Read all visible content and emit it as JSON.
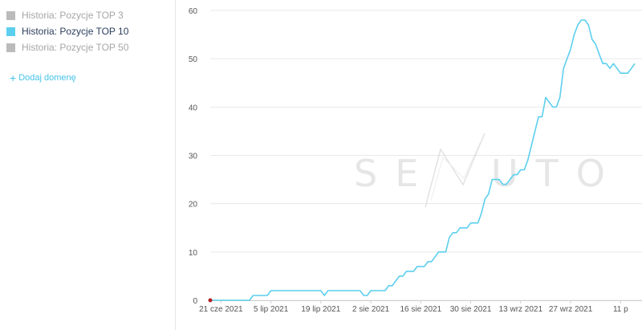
{
  "sidebar": {
    "legend": [
      {
        "label": "Historia: Pozycje TOP 3",
        "color": "#bbbbbb",
        "text_color": "#a6a6a6",
        "active": false
      },
      {
        "label": "Historia: Pozycje TOP 10",
        "color": "#5ccfee",
        "text_color": "#2c3e5c",
        "active": true
      },
      {
        "label": "Historia: Pozycje TOP 50",
        "color": "#bbbbbb",
        "text_color": "#a6a6a6",
        "active": false
      }
    ],
    "add_domain_label": "Dodaj domenę",
    "add_domain_icon": "plus-icon"
  },
  "watermark": {
    "left": "SE",
    "right": "UTO"
  },
  "chart_data": {
    "type": "line",
    "title": "",
    "xlabel": "",
    "ylabel": "",
    "ylim": [
      0,
      60
    ],
    "yticks": [
      0,
      10,
      20,
      30,
      40,
      50,
      60
    ],
    "xlim": [
      "2021-06-18",
      "2021-10-17"
    ],
    "xticks": [
      {
        "date": "2021-06-21",
        "label": "21 cze 2021"
      },
      {
        "date": "2021-07-05",
        "label": "5 lip 2021"
      },
      {
        "date": "2021-07-19",
        "label": "19 lip 2021"
      },
      {
        "date": "2021-08-02",
        "label": "2 sie 2021"
      },
      {
        "date": "2021-08-16",
        "label": "16 sie 2021"
      },
      {
        "date": "2021-08-30",
        "label": "30 sie 2021"
      },
      {
        "date": "2021-09-13",
        "label": "13 wrz 2021"
      },
      {
        "date": "2021-09-27",
        "label": "27 wrz 2021"
      },
      {
        "date": "2021-10-11",
        "label": "11 p"
      }
    ],
    "grid": true,
    "series": [
      {
        "name": "Historia: Pozycje TOP 10",
        "color": "#5ccfee",
        "points": [
          [
            "2021-06-18",
            0
          ],
          [
            "2021-06-29",
            0
          ],
          [
            "2021-06-30",
            1
          ],
          [
            "2021-07-04",
            1
          ],
          [
            "2021-07-05",
            2
          ],
          [
            "2021-07-19",
            2
          ],
          [
            "2021-07-20",
            1
          ],
          [
            "2021-07-21",
            2
          ],
          [
            "2021-07-30",
            2
          ],
          [
            "2021-07-31",
            1
          ],
          [
            "2021-08-01",
            1
          ],
          [
            "2021-08-02",
            2
          ],
          [
            "2021-08-06",
            2
          ],
          [
            "2021-08-07",
            3
          ],
          [
            "2021-08-08",
            3
          ],
          [
            "2021-08-09",
            4
          ],
          [
            "2021-08-10",
            5
          ],
          [
            "2021-08-11",
            5
          ],
          [
            "2021-08-12",
            6
          ],
          [
            "2021-08-14",
            6
          ],
          [
            "2021-08-15",
            7
          ],
          [
            "2021-08-17",
            7
          ],
          [
            "2021-08-18",
            8
          ],
          [
            "2021-08-19",
            8
          ],
          [
            "2021-08-20",
            9
          ],
          [
            "2021-08-21",
            10
          ],
          [
            "2021-08-23",
            10
          ],
          [
            "2021-08-24",
            13
          ],
          [
            "2021-08-25",
            14
          ],
          [
            "2021-08-26",
            14
          ],
          [
            "2021-08-27",
            15
          ],
          [
            "2021-08-29",
            15
          ],
          [
            "2021-08-30",
            16
          ],
          [
            "2021-09-01",
            16
          ],
          [
            "2021-09-02",
            18
          ],
          [
            "2021-09-03",
            21
          ],
          [
            "2021-09-04",
            22
          ],
          [
            "2021-09-05",
            25
          ],
          [
            "2021-09-07",
            25
          ],
          [
            "2021-09-08",
            24
          ],
          [
            "2021-09-09",
            24
          ],
          [
            "2021-09-10",
            25
          ],
          [
            "2021-09-11",
            26
          ],
          [
            "2021-09-12",
            26
          ],
          [
            "2021-09-13",
            27
          ],
          [
            "2021-09-14",
            27
          ],
          [
            "2021-09-15",
            29
          ],
          [
            "2021-09-16",
            32
          ],
          [
            "2021-09-17",
            35
          ],
          [
            "2021-09-18",
            38
          ],
          [
            "2021-09-19",
            38
          ],
          [
            "2021-09-20",
            42
          ],
          [
            "2021-09-21",
            41
          ],
          [
            "2021-09-22",
            40
          ],
          [
            "2021-09-23",
            40
          ],
          [
            "2021-09-24",
            42
          ],
          [
            "2021-09-25",
            48
          ],
          [
            "2021-09-26",
            50
          ],
          [
            "2021-09-27",
            52
          ],
          [
            "2021-09-28",
            55
          ],
          [
            "2021-09-29",
            57
          ],
          [
            "2021-09-30",
            58
          ],
          [
            "2021-10-01",
            58
          ],
          [
            "2021-10-02",
            57
          ],
          [
            "2021-10-03",
            54
          ],
          [
            "2021-10-04",
            53
          ],
          [
            "2021-10-05",
            51
          ],
          [
            "2021-10-06",
            49
          ],
          [
            "2021-10-07",
            49
          ],
          [
            "2021-10-08",
            48
          ],
          [
            "2021-10-09",
            49
          ],
          [
            "2021-10-10",
            48
          ],
          [
            "2021-10-11",
            47
          ],
          [
            "2021-10-13",
            47
          ],
          [
            "2021-10-14",
            48
          ],
          [
            "2021-10-15",
            49
          ]
        ]
      },
      {
        "name": "Historia: Pozycje TOP 3",
        "color": "#b22222",
        "points": [
          [
            "2021-06-18",
            0
          ]
        ]
      }
    ]
  }
}
